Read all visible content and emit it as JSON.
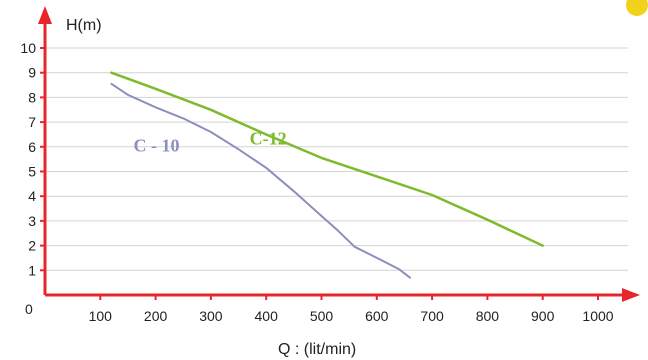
{
  "chart_data": {
    "type": "line",
    "xlabel": "Q : (lit/min)",
    "ylabel": "H(m)",
    "xlim": [
      0,
      1000
    ],
    "ylim": [
      0,
      10
    ],
    "x_ticks": [
      "100",
      "200",
      "300",
      "400",
      "500",
      "600",
      "700",
      "800",
      "900",
      "1000"
    ],
    "y_ticks": [
      "1",
      "2",
      "3",
      "4",
      "5",
      "6",
      "7",
      "8",
      "9",
      "10"
    ],
    "origin_label": "0",
    "grid": "horizontal",
    "series": [
      {
        "name": "C - 10",
        "color": "#8a8fbf",
        "points": [
          [
            120,
            8.55
          ],
          [
            150,
            8.1
          ],
          [
            200,
            7.6
          ],
          [
            250,
            7.15
          ],
          [
            300,
            6.6
          ],
          [
            350,
            5.9
          ],
          [
            400,
            5.15
          ],
          [
            450,
            4.2
          ],
          [
            500,
            3.2
          ],
          [
            530,
            2.6
          ],
          [
            560,
            1.95
          ],
          [
            600,
            1.5
          ],
          [
            640,
            1.05
          ],
          [
            660,
            0.7
          ]
        ]
      },
      {
        "name": "C-12",
        "color": "#7fba2e",
        "points": [
          [
            120,
            9.0
          ],
          [
            200,
            8.35
          ],
          [
            300,
            7.5
          ],
          [
            400,
            6.5
          ],
          [
            500,
            5.55
          ],
          [
            600,
            4.8
          ],
          [
            700,
            4.05
          ],
          [
            800,
            3.05
          ],
          [
            900,
            2.0
          ]
        ]
      }
    ],
    "label_positions": {
      "C - 10": [
        160,
        5.8
      ],
      "C-12": [
        370,
        6.1
      ]
    }
  },
  "axis_color": "#e8252a"
}
